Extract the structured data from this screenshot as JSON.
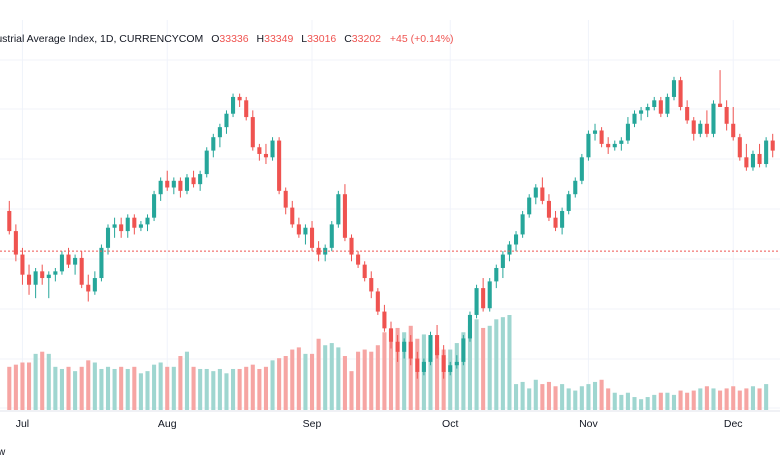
{
  "legend": {
    "symbol_text": "lustrial Average Index, 1D, CURRENCYCOM",
    "open_key": "O",
    "open_value": "33336",
    "high_key": "H",
    "high_value": "33349",
    "low_key": "L",
    "low_value": "33016",
    "close_key": "C",
    "close_value": "33202",
    "change": "+45 (+0.14%)"
  },
  "watermark_fragment": "w",
  "colors": {
    "up": "#26a69a",
    "down": "#ef5350",
    "volume_up": "#9fd6d0",
    "volume_down": "#f6a5a3",
    "grid": "#f0f3fa",
    "price_line": "#ef5350"
  },
  "chart_data": {
    "type": "candlestick",
    "x_ticks": [
      "Jul",
      "Aug",
      "Sep",
      "Oct",
      "Nov",
      "Dec"
    ],
    "last_close": 33202,
    "candles": [
      [
        33800,
        33950,
        33450,
        33500
      ],
      [
        33500,
        33600,
        33050,
        33150
      ],
      [
        33150,
        33250,
        32700,
        32850
      ],
      [
        32850,
        33000,
        32550,
        32700
      ],
      [
        32700,
        32950,
        32500,
        32900
      ],
      [
        32900,
        33000,
        32700,
        32800
      ],
      [
        32800,
        32900,
        32500,
        32850
      ],
      [
        32850,
        32950,
        32750,
        32900
      ],
      [
        32900,
        33200,
        32850,
        33150
      ],
      [
        33150,
        33250,
        32950,
        33000
      ],
      [
        33000,
        33150,
        32850,
        33100
      ],
      [
        33100,
        33200,
        32650,
        32700
      ],
      [
        32700,
        32850,
        32450,
        32600
      ],
      [
        32600,
        32900,
        32550,
        32800
      ],
      [
        32800,
        33300,
        32750,
        33250
      ],
      [
        33250,
        33600,
        33150,
        33550
      ],
      [
        33550,
        33700,
        33400,
        33600
      ],
      [
        33600,
        33700,
        33400,
        33500
      ],
      [
        33500,
        33750,
        33400,
        33700
      ],
      [
        33700,
        33750,
        33450,
        33550
      ],
      [
        33550,
        33650,
        33500,
        33600
      ],
      [
        33600,
        33750,
        33500,
        33700
      ],
      [
        33700,
        34100,
        33650,
        34050
      ],
      [
        34050,
        34300,
        33950,
        34250
      ],
      [
        34250,
        34400,
        34100,
        34150
      ],
      [
        34150,
        34300,
        34050,
        34250
      ],
      [
        34250,
        34300,
        34000,
        34100
      ],
      [
        34100,
        34350,
        34050,
        34300
      ],
      [
        34300,
        34400,
        34150,
        34200
      ],
      [
        34200,
        34400,
        34100,
        34350
      ],
      [
        34350,
        34750,
        34300,
        34700
      ],
      [
        34700,
        34950,
        34600,
        34900
      ],
      [
        34900,
        35100,
        34750,
        35050
      ],
      [
        35050,
        35300,
        34950,
        35250
      ],
      [
        35250,
        35550,
        35200,
        35500
      ],
      [
        35500,
        35550,
        35350,
        35450
      ],
      [
        35450,
        35500,
        35150,
        35200
      ],
      [
        35200,
        35300,
        34700,
        34750
      ],
      [
        34750,
        34800,
        34550,
        34650
      ],
      [
        34650,
        34800,
        34500,
        34600
      ],
      [
        34600,
        34900,
        34550,
        34850
      ],
      [
        34850,
        34900,
        34050,
        34100
      ],
      [
        34100,
        34150,
        33750,
        33850
      ],
      [
        33850,
        33950,
        33550,
        33600
      ],
      [
        33600,
        33700,
        33400,
        33450
      ],
      [
        33450,
        33600,
        33300,
        33550
      ],
      [
        33550,
        33650,
        33200,
        33250
      ],
      [
        33250,
        33350,
        33050,
        33150
      ],
      [
        33150,
        33300,
        33050,
        33250
      ],
      [
        33250,
        33650,
        33200,
        33600
      ],
      [
        33600,
        34100,
        33550,
        34050
      ],
      [
        34050,
        34200,
        33350,
        33400
      ],
      [
        33400,
        33450,
        33050,
        33150
      ],
      [
        33150,
        33200,
        32950,
        33000
      ],
      [
        33000,
        33050,
        32750,
        32800
      ],
      [
        32800,
        32900,
        32500,
        32600
      ],
      [
        32600,
        32650,
        32250,
        32300
      ],
      [
        32300,
        32400,
        32000,
        32050
      ],
      [
        32050,
        32150,
        31750,
        31850
      ],
      [
        31850,
        31950,
        31550,
        31700
      ],
      [
        31700,
        31900,
        31600,
        31850
      ],
      [
        31850,
        31950,
        31500,
        31600
      ],
      [
        31600,
        31700,
        31300,
        31400
      ],
      [
        31400,
        31600,
        31350,
        31550
      ],
      [
        31550,
        32000,
        31500,
        31950
      ],
      [
        31950,
        32100,
        31600,
        31650
      ],
      [
        31650,
        31800,
        31300,
        31400
      ],
      [
        31400,
        31550,
        31350,
        31500
      ],
      [
        31500,
        31650,
        31450,
        31550
      ],
      [
        31550,
        31950,
        31500,
        31900
      ],
      [
        31900,
        32300,
        31850,
        32250
      ],
      [
        32250,
        32700,
        32200,
        32650
      ],
      [
        32650,
        32800,
        32300,
        32350
      ],
      [
        32350,
        32800,
        32300,
        32750
      ],
      [
        32750,
        33000,
        32650,
        32950
      ],
      [
        32950,
        33200,
        32800,
        33150
      ],
      [
        33150,
        33350,
        33050,
        33300
      ],
      [
        33300,
        33500,
        33200,
        33450
      ],
      [
        33450,
        33800,
        33400,
        33750
      ],
      [
        33750,
        34050,
        33700,
        34000
      ],
      [
        34000,
        34200,
        33900,
        34150
      ],
      [
        34150,
        34300,
        33900,
        33950
      ],
      [
        33950,
        34050,
        33650,
        33700
      ],
      [
        33700,
        33800,
        33500,
        33550
      ],
      [
        33550,
        33850,
        33450,
        33800
      ],
      [
        33800,
        34100,
        33750,
        34050
      ],
      [
        34050,
        34300,
        34000,
        34250
      ],
      [
        34250,
        34650,
        34200,
        34600
      ],
      [
        34600,
        35000,
        34550,
        34950
      ],
      [
        34950,
        35100,
        34850,
        35000
      ],
      [
        35000,
        35050,
        34750,
        34800
      ],
      [
        34800,
        34900,
        34650,
        34750
      ],
      [
        34750,
        34850,
        34700,
        34800
      ],
      [
        34800,
        34900,
        34700,
        34850
      ],
      [
        34850,
        35200,
        34800,
        35100
      ],
      [
        35100,
        35300,
        35050,
        35250
      ],
      [
        35250,
        35350,
        35150,
        35300
      ],
      [
        35300,
        35400,
        35200,
        35350
      ],
      [
        35350,
        35500,
        35300,
        35450
      ],
      [
        35450,
        35500,
        35200,
        35250
      ],
      [
        35250,
        35550,
        35200,
        35500
      ],
      [
        35500,
        35800,
        35450,
        35750
      ],
      [
        35750,
        35800,
        35300,
        35350
      ],
      [
        35350,
        35450,
        35100,
        35150
      ],
      [
        35150,
        35200,
        34850,
        34950
      ],
      [
        34950,
        35150,
        34900,
        35100
      ],
      [
        35100,
        35300,
        34900,
        34950
      ],
      [
        34950,
        35450,
        34900,
        35400
      ],
      [
        35400,
        35900,
        35350,
        35350
      ],
      [
        35350,
        35450,
        35000,
        35100
      ],
      [
        35100,
        35350,
        34850,
        34900
      ],
      [
        34900,
        34950,
        34550,
        34600
      ],
      [
        34600,
        34800,
        34400,
        34450
      ],
      [
        34450,
        34700,
        34400,
        34650
      ],
      [
        34650,
        34800,
        34450,
        34500
      ],
      [
        34500,
        34900,
        34450,
        34850
      ],
      [
        34850,
        34950,
        34600,
        34700
      ]
    ],
    "volumes": [
      20,
      21,
      22,
      22,
      26,
      27,
      26,
      20,
      19,
      20,
      18,
      20,
      23,
      22,
      19,
      20,
      19,
      20,
      19,
      20,
      17,
      18,
      21,
      22,
      20,
      20,
      25,
      27,
      20,
      19,
      19,
      18,
      19,
      17,
      19,
      19,
      20,
      21,
      19,
      20,
      23,
      24,
      25,
      28,
      29,
      26,
      26,
      33,
      30,
      31,
      29,
      25,
      18,
      27,
      28,
      27,
      30,
      36,
      37,
      38,
      36,
      39,
      33,
      35,
      32,
      29,
      28,
      28,
      31,
      36,
      39,
      42,
      38,
      39,
      42,
      43,
      44,
      12,
      13,
      10,
      14,
      12,
      13,
      11,
      12,
      10,
      9,
      11,
      12,
      13,
      14,
      10,
      8,
      7,
      8,
      6,
      5,
      6,
      7,
      8,
      8,
      7,
      9,
      8,
      9,
      10,
      11,
      10,
      9,
      10,
      11,
      9,
      10,
      11,
      10,
      12
    ]
  }
}
